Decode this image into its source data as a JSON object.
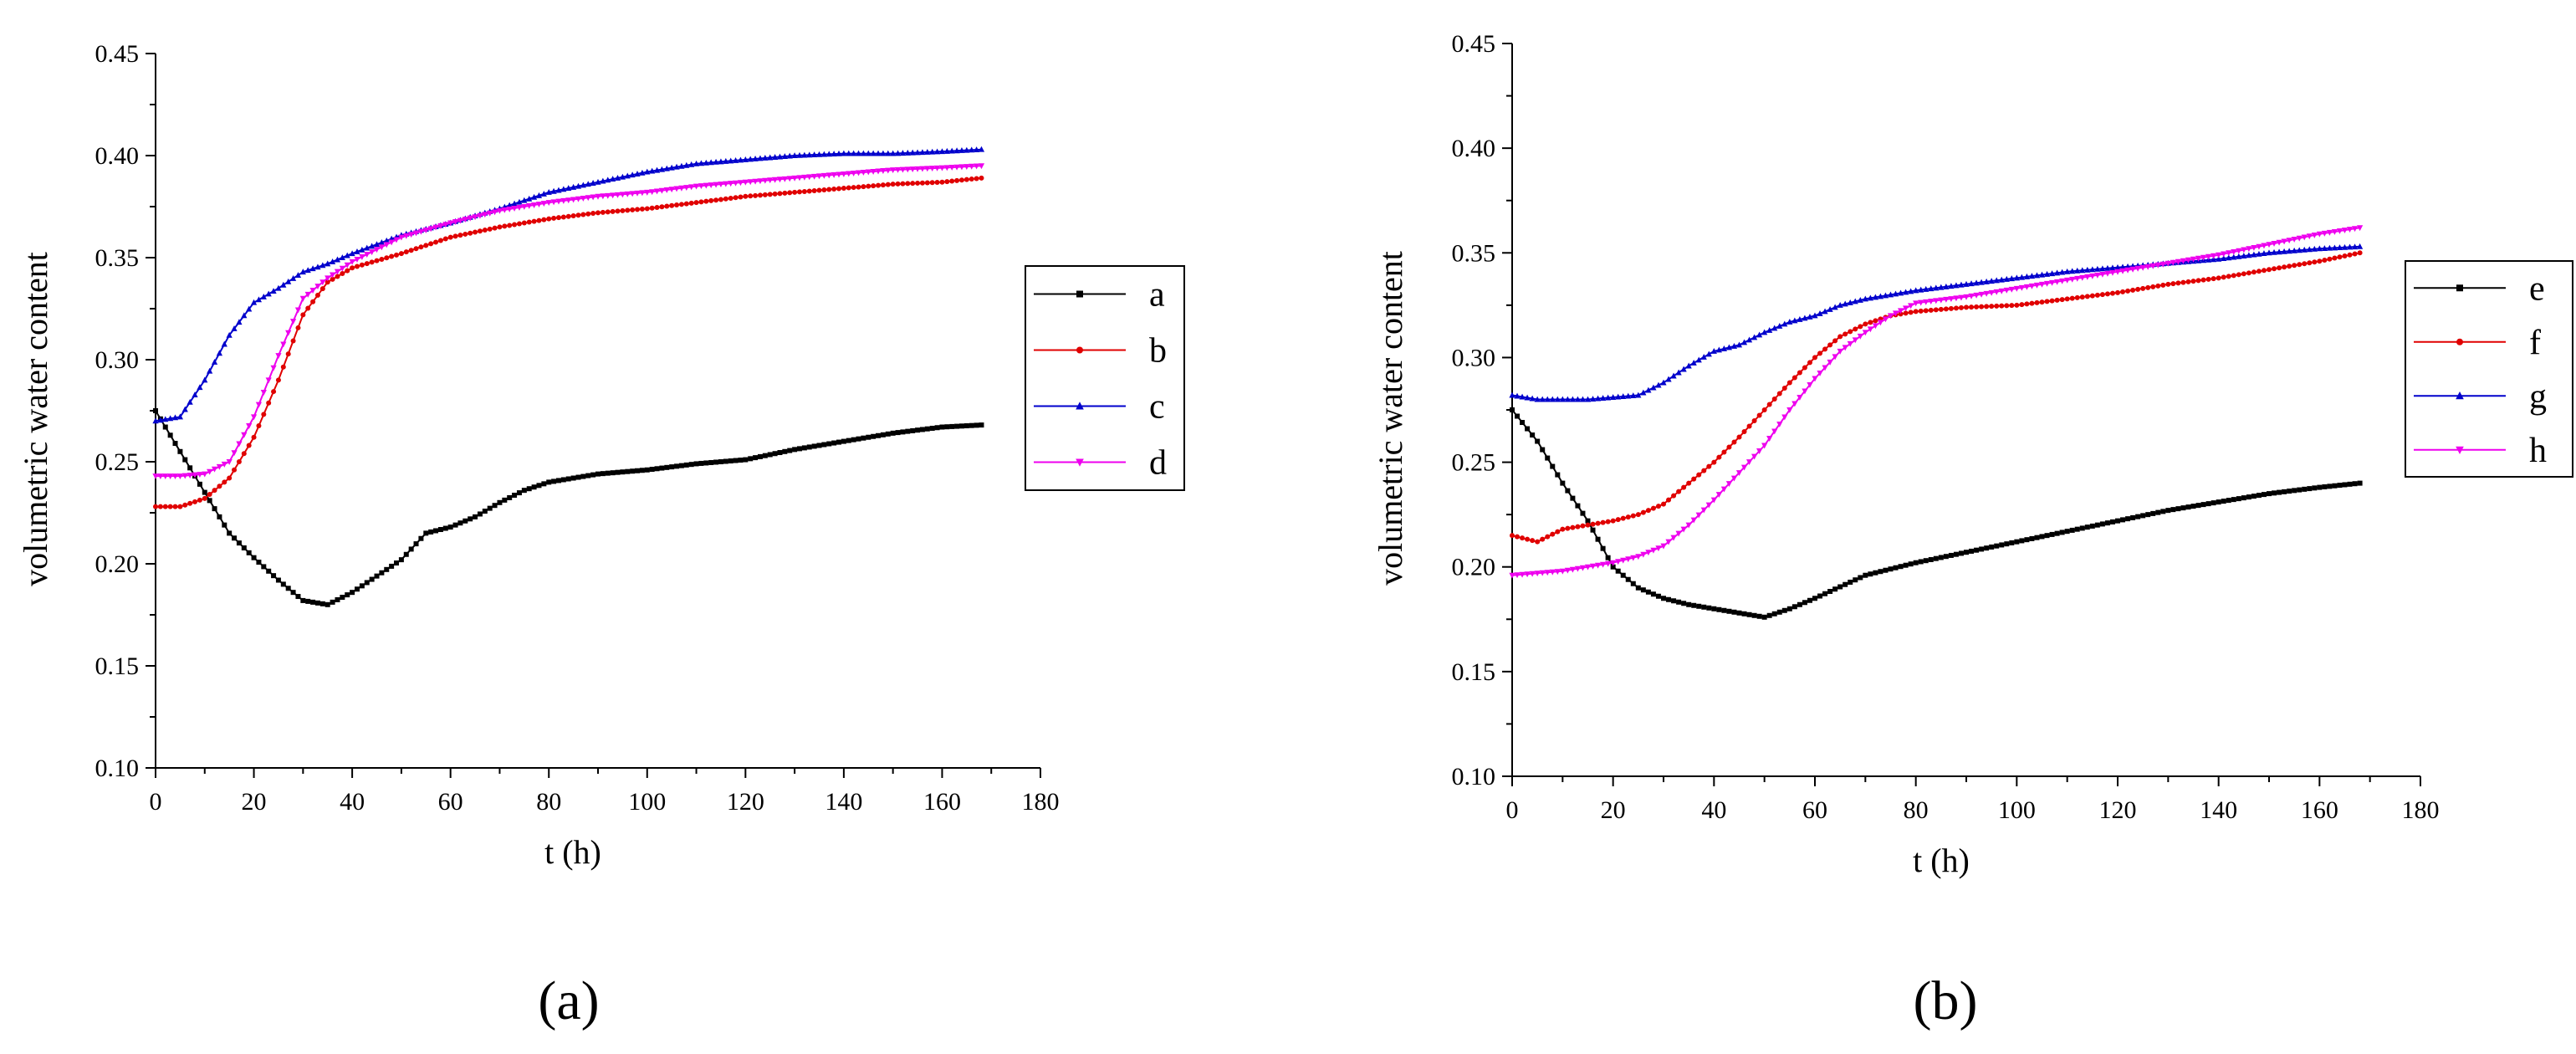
{
  "figure": {
    "panel_labels": [
      "(a)",
      "(b)"
    ]
  },
  "chart_data": [
    {
      "type": "line",
      "panel": "(a)",
      "title": "",
      "xlabel": "t (h)",
      "ylabel": "volumetric water content",
      "xlim": [
        0,
        180
      ],
      "ylim": [
        0.1,
        0.45
      ],
      "xticks": [
        0,
        20,
        40,
        60,
        80,
        100,
        120,
        140,
        160,
        180
      ],
      "yticks": [
        0.1,
        0.15,
        0.2,
        0.25,
        0.3,
        0.35,
        0.4,
        0.45
      ],
      "ytick_labels": [
        "0.10",
        "0.15",
        "0.20",
        "0.25",
        "0.30",
        "0.35",
        "0.40",
        "0.45"
      ],
      "grid": false,
      "legend": "right",
      "series": [
        {
          "name": "a",
          "color": "#000000",
          "marker": "square",
          "x": [
            0,
            5,
            10,
            15,
            20,
            25,
            30,
            35,
            40,
            45,
            50,
            55,
            60,
            65,
            70,
            75,
            80,
            90,
            100,
            110,
            120,
            130,
            140,
            150,
            160,
            168
          ],
          "y": [
            0.275,
            0.255,
            0.235,
            0.215,
            0.203,
            0.192,
            0.182,
            0.18,
            0.186,
            0.194,
            0.202,
            0.215,
            0.218,
            0.223,
            0.23,
            0.236,
            0.24,
            0.244,
            0.246,
            0.249,
            0.251,
            0.256,
            0.26,
            0.264,
            0.267,
            0.268
          ]
        },
        {
          "name": "b",
          "color": "#e00000",
          "marker": "circle",
          "x": [
            0,
            5,
            10,
            15,
            20,
            25,
            30,
            35,
            40,
            50,
            60,
            70,
            80,
            90,
            100,
            110,
            120,
            130,
            140,
            150,
            160,
            168
          ],
          "y": [
            0.228,
            0.228,
            0.232,
            0.242,
            0.262,
            0.29,
            0.322,
            0.338,
            0.345,
            0.352,
            0.36,
            0.365,
            0.369,
            0.372,
            0.374,
            0.377,
            0.38,
            0.382,
            0.384,
            0.386,
            0.387,
            0.389
          ]
        },
        {
          "name": "c",
          "color": "#0000cc",
          "marker": "triangle-up",
          "x": [
            0,
            5,
            10,
            15,
            20,
            25,
            30,
            35,
            40,
            50,
            60,
            70,
            80,
            90,
            100,
            110,
            120,
            130,
            140,
            150,
            160,
            168
          ],
          "y": [
            0.27,
            0.272,
            0.29,
            0.312,
            0.328,
            0.335,
            0.343,
            0.347,
            0.352,
            0.361,
            0.367,
            0.374,
            0.382,
            0.387,
            0.392,
            0.396,
            0.398,
            0.4,
            0.401,
            0.401,
            0.402,
            0.403
          ]
        },
        {
          "name": "d",
          "color": "#ee00ee",
          "marker": "triangle-down",
          "x": [
            0,
            5,
            10,
            15,
            20,
            25,
            30,
            35,
            40,
            50,
            60,
            70,
            80,
            90,
            100,
            110,
            120,
            130,
            140,
            150,
            160,
            168
          ],
          "y": [
            0.243,
            0.243,
            0.244,
            0.25,
            0.272,
            0.302,
            0.33,
            0.34,
            0.348,
            0.36,
            0.367,
            0.373,
            0.377,
            0.38,
            0.382,
            0.385,
            0.387,
            0.389,
            0.391,
            0.393,
            0.394,
            0.395
          ]
        }
      ]
    },
    {
      "type": "line",
      "panel": "(b)",
      "title": "",
      "xlabel": "t (h)",
      "ylabel": "volumetric water content",
      "xlim": [
        0,
        180
      ],
      "ylim": [
        0.1,
        0.45
      ],
      "xticks": [
        0,
        20,
        40,
        60,
        80,
        100,
        120,
        140,
        160,
        180
      ],
      "yticks": [
        0.1,
        0.15,
        0.2,
        0.25,
        0.3,
        0.35,
        0.4,
        0.45
      ],
      "ytick_labels": [
        "0.10",
        "0.15",
        "0.20",
        "0.25",
        "0.30",
        "0.35",
        "0.40",
        "0.45"
      ],
      "grid": false,
      "legend": "right",
      "series": [
        {
          "name": "e",
          "color": "#000000",
          "marker": "square",
          "x": [
            0,
            5,
            10,
            15,
            20,
            25,
            30,
            35,
            40,
            45,
            50,
            55,
            60,
            70,
            80,
            90,
            100,
            110,
            120,
            130,
            140,
            150,
            160,
            168
          ],
          "y": [
            0.275,
            0.26,
            0.24,
            0.222,
            0.2,
            0.19,
            0.185,
            0.182,
            0.18,
            0.178,
            0.176,
            0.18,
            0.185,
            0.196,
            0.202,
            0.207,
            0.212,
            0.217,
            0.222,
            0.227,
            0.231,
            0.235,
            0.238,
            0.24
          ]
        },
        {
          "name": "f",
          "color": "#e00000",
          "marker": "circle",
          "x": [
            0,
            5,
            10,
            15,
            20,
            25,
            30,
            35,
            40,
            45,
            50,
            55,
            60,
            65,
            70,
            75,
            80,
            90,
            100,
            110,
            120,
            130,
            140,
            150,
            160,
            168
          ],
          "y": [
            0.215,
            0.212,
            0.218,
            0.22,
            0.222,
            0.225,
            0.23,
            0.24,
            0.25,
            0.262,
            0.275,
            0.288,
            0.3,
            0.31,
            0.316,
            0.32,
            0.322,
            0.324,
            0.325,
            0.328,
            0.331,
            0.335,
            0.338,
            0.342,
            0.346,
            0.35
          ]
        },
        {
          "name": "g",
          "color": "#0000cc",
          "marker": "triangle-up",
          "x": [
            0,
            5,
            10,
            15,
            20,
            25,
            30,
            35,
            40,
            45,
            50,
            55,
            60,
            65,
            70,
            75,
            80,
            90,
            100,
            110,
            120,
            130,
            140,
            150,
            160,
            168
          ],
          "y": [
            0.282,
            0.28,
            0.28,
            0.28,
            0.281,
            0.282,
            0.288,
            0.296,
            0.303,
            0.306,
            0.312,
            0.317,
            0.32,
            0.325,
            0.328,
            0.33,
            0.332,
            0.335,
            0.338,
            0.341,
            0.343,
            0.345,
            0.347,
            0.35,
            0.352,
            0.353
          ]
        },
        {
          "name": "h",
          "color": "#ee00ee",
          "marker": "triangle-down",
          "x": [
            0,
            5,
            10,
            15,
            20,
            25,
            30,
            35,
            40,
            45,
            50,
            55,
            60,
            65,
            70,
            75,
            80,
            90,
            100,
            110,
            120,
            130,
            140,
            150,
            160,
            168
          ],
          "y": [
            0.196,
            0.197,
            0.198,
            0.2,
            0.202,
            0.205,
            0.21,
            0.22,
            0.232,
            0.245,
            0.258,
            0.275,
            0.29,
            0.303,
            0.312,
            0.32,
            0.326,
            0.329,
            0.333,
            0.337,
            0.341,
            0.345,
            0.349,
            0.354,
            0.359,
            0.362
          ]
        }
      ]
    }
  ]
}
